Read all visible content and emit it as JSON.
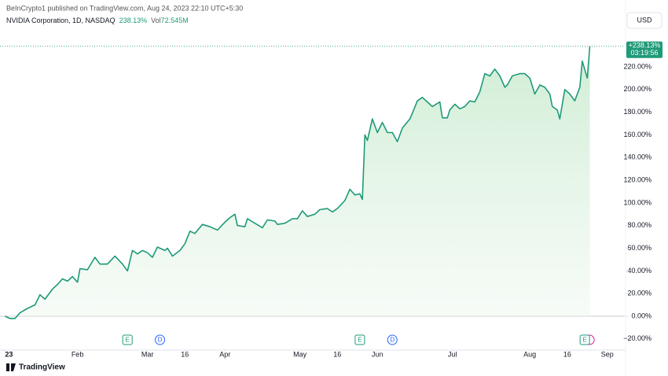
{
  "header": {
    "publisher": "BeInCrypto1 published on TradingView.com, Aug 24, 2023 22:10 UTC+5:30",
    "symbol": "NVIDIA Corporation, 1D, NASDAQ",
    "change": "238.13%",
    "vol_label": "Vol",
    "vol": "72.545M",
    "currency": "USD",
    "brand": "TradingView"
  },
  "chart_data": {
    "type": "area",
    "color": "#1f9a78",
    "grid": false,
    "series": [
      {
        "name": "NVIDIA Corporation",
        "color": "#1f9a78",
        "x": [
          3,
          5,
          7,
          9,
          12,
          15,
          17,
          19,
          22,
          24,
          26,
          28,
          30,
          32,
          33,
          36,
          39,
          41,
          44,
          47,
          50,
          52,
          54,
          56,
          58,
          60,
          62,
          64,
          67,
          68,
          70,
          73,
          75,
          77,
          79,
          82,
          85,
          88,
          91,
          93,
          95,
          96,
          99,
          100,
          103,
          106,
          108,
          111,
          112,
          115,
          118,
          120,
          122,
          124,
          127,
          129,
          132,
          134,
          136,
          139,
          141,
          143,
          145,
          146,
          147,
          148,
          150,
          152,
          154,
          156,
          158,
          160,
          162,
          165,
          166,
          168,
          170,
          172,
          174,
          177,
          178,
          180,
          181,
          183,
          185,
          187,
          189,
          191,
          193,
          195,
          197,
          199,
          201,
          203,
          204,
          206,
          209,
          211,
          213,
          215,
          217,
          219,
          221,
          222,
          224,
          225,
          227,
          229,
          231,
          233,
          234,
          236,
          237
        ],
        "values": [
          0,
          -2,
          -2,
          3,
          7,
          10,
          19,
          15,
          24,
          28,
          33,
          31,
          35,
          30,
          42,
          41,
          52,
          46,
          46,
          53,
          46,
          40,
          58,
          55,
          58,
          56,
          52,
          61,
          58,
          60,
          53,
          58,
          64,
          75,
          73,
          81,
          79,
          76,
          83,
          87,
          90,
          80,
          79,
          86,
          82,
          78,
          85,
          84,
          81,
          82,
          86,
          86,
          93,
          88,
          90,
          94,
          95,
          92,
          95,
          102,
          112,
          107,
          108,
          103,
          160,
          155,
          174,
          162,
          171,
          162,
          162,
          154,
          166,
          174,
          179,
          190,
          193,
          189,
          185,
          189,
          175,
          175,
          182,
          187,
          183,
          185,
          190,
          189,
          198,
          214,
          212,
          218,
          212,
          202,
          204,
          212,
          214,
          214,
          210,
          196,
          204,
          202,
          196,
          185,
          182,
          174,
          200,
          196,
          190,
          202,
          225,
          210,
          238.13
        ],
        "last_label": "+238.13%",
        "countdown": "03:19:56"
      }
    ],
    "xlim": [
      1,
      251
    ],
    "ylim": [
      -29.8,
      247.7
    ],
    "xticks": [
      {
        "value": 3,
        "label": "23"
      },
      {
        "value": 32,
        "label": "Feb"
      },
      {
        "value": 60,
        "label": "Mar"
      },
      {
        "value": 75,
        "label": "16"
      },
      {
        "value": 91,
        "label": "Apr"
      },
      {
        "value": 121,
        "label": "May"
      },
      {
        "value": 136,
        "label": "16"
      },
      {
        "value": 152,
        "label": "Jun"
      },
      {
        "value": 182,
        "label": "Jul"
      },
      {
        "value": 213,
        "label": "Aug"
      },
      {
        "value": 228,
        "label": "16"
      },
      {
        "value": 244,
        "label": "Sep"
      }
    ],
    "yticks": [
      {
        "value": -20,
        "label": "−20.00%"
      },
      {
        "value": 0,
        "label": "0.00%"
      },
      {
        "value": 20,
        "label": "20.00%"
      },
      {
        "value": 40,
        "label": "40.00%"
      },
      {
        "value": 60,
        "label": "60.00%"
      },
      {
        "value": 80,
        "label": "80.00%"
      },
      {
        "value": 100,
        "label": "100.00%"
      },
      {
        "value": 120,
        "label": "120.00%"
      },
      {
        "value": 140,
        "label": "140.00%"
      },
      {
        "value": 160,
        "label": "160.00%"
      },
      {
        "value": 180,
        "label": "180.00%"
      },
      {
        "value": 200,
        "label": "200.00%"
      },
      {
        "value": 220,
        "label": "220.00%"
      }
    ],
    "events": [
      {
        "label": "E",
        "x": 52
      },
      {
        "label": "D",
        "x": 65
      },
      {
        "label": "E",
        "x": 145
      },
      {
        "label": "D",
        "x": 158
      },
      {
        "label": "E",
        "x": 235
      }
    ]
  }
}
